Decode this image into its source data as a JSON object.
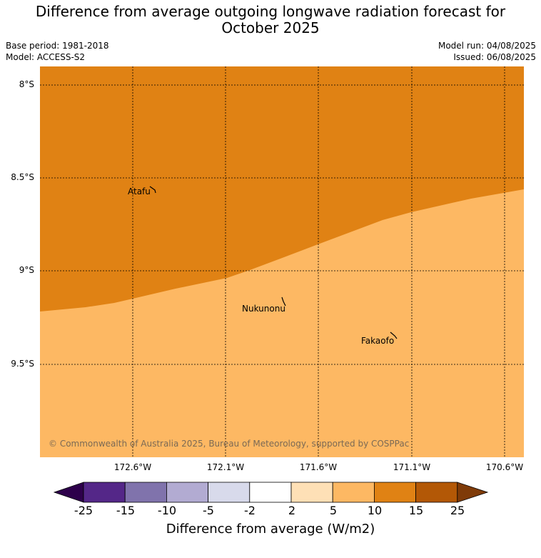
{
  "title": "Difference from average outgoing longwave radiation forecast for October 2025",
  "title_lines": [
    "Difference from average outgoing longwave radiation forecast for",
    "October 2025"
  ],
  "meta": {
    "base_period": "Base period: 1981-2018",
    "model": "Model: ACCESS-S2",
    "model_run": "Model run: 04/08/2025",
    "issued": "Issued: 06/08/2025"
  },
  "map": {
    "lat_labels": [
      "8°S",
      "8.5°S",
      "9°S",
      "9.5°S"
    ],
    "lon_labels": [
      "172.6°W",
      "172.1°W",
      "171.6°W",
      "171.1°W",
      "170.6°W"
    ],
    "places": [
      "Atafu",
      "Nukunonu",
      "Fakaofo"
    ],
    "copyright": "© Commonwealth of Australia 2025, Bureau of Meteorology, supported by COSPPac",
    "colors": {
      "upper_region": "#e08214",
      "lower_region": "#fdb863"
    }
  },
  "colorbar": {
    "ticks": [
      "-25",
      "-15",
      "-10",
      "-5",
      "-2",
      "2",
      "5",
      "10",
      "15",
      "25"
    ],
    "colors": [
      "#2d004b",
      "#542788",
      "#8073ac",
      "#b2abd2",
      "#d8daeb",
      "#ffffff",
      "#fee0b6",
      "#fdb863",
      "#e08214",
      "#b35806",
      "#7f3b08"
    ],
    "label": "Difference from average (W/m2)"
  }
}
